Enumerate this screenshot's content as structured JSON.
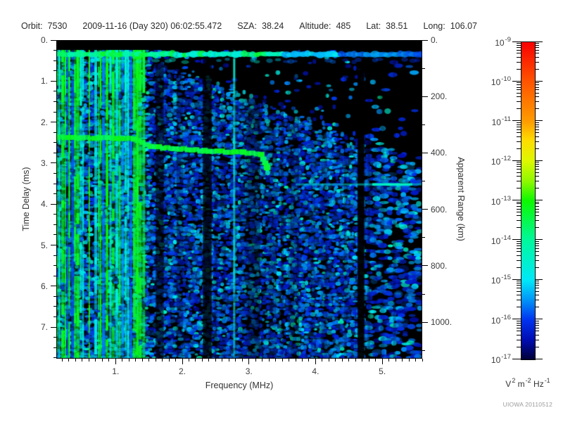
{
  "header": {
    "items": [
      {
        "label": "Orbit:",
        "value": "7530"
      },
      {
        "label": "",
        "value": "2009-11-16 (Day 320) 06:02:55.472"
      },
      {
        "label": "SZA:",
        "value": "38.24"
      },
      {
        "label": "Altitude:",
        "value": "485"
      },
      {
        "label": "Lat:",
        "value": "38.51"
      },
      {
        "label": "Long:",
        "value": "106.07"
      }
    ]
  },
  "chart_data": {
    "type": "heatmap",
    "xlabel": "Frequency (MHz)",
    "ylabel_left": "Time Delay (ms)",
    "ylabel_right": "Apparent Range (km)",
    "x_range_mhz": [
      0.11,
      5.6
    ],
    "x_major_ticks": [
      {
        "v": 1,
        "label": "1."
      },
      {
        "v": 2,
        "label": "2."
      },
      {
        "v": 3,
        "label": "3."
      },
      {
        "v": 4,
        "label": "4."
      },
      {
        "v": 5,
        "label": "5."
      }
    ],
    "x_minor_step_mhz": 0.1,
    "y_range_ms": [
      0,
      7.77
    ],
    "y_major_ticks": [
      {
        "v": 0,
        "label": "0."
      },
      {
        "v": 1,
        "label": "1."
      },
      {
        "v": 2,
        "label": "2."
      },
      {
        "v": 3,
        "label": "3."
      },
      {
        "v": 4,
        "label": "4."
      },
      {
        "v": 5,
        "label": "5."
      },
      {
        "v": 6,
        "label": "6."
      },
      {
        "v": 7,
        "label": "7."
      }
    ],
    "y_minor_step_ms": 0.25,
    "y2_range_km": [
      0,
      1129
    ],
    "y2_major_ticks": [
      {
        "v": 0,
        "label": "0."
      },
      {
        "v": 200,
        "label": "200."
      },
      {
        "v": 400,
        "label": "400."
      },
      {
        "v": 600,
        "label": "600."
      },
      {
        "v": 800,
        "label": "800."
      },
      {
        "v": 1000,
        "label": "1000."
      }
    ],
    "y2_minor_step_km": 100,
    "colorbar": {
      "scale": "log",
      "z_range": [
        "1e-17",
        "1e-9"
      ],
      "units": "V² m⁻² Hz⁻¹",
      "units_parts": [
        {
          "t": "V"
        },
        {
          "t": "2",
          "sup": true
        },
        {
          "t": " m"
        },
        {
          "t": "-2",
          "sup": true
        },
        {
          "t": " Hz"
        },
        {
          "t": "-1",
          "sup": true
        }
      ],
      "ticks": [
        {
          "exp": "-9",
          "label": "10⁻⁹"
        },
        {
          "exp": "-10",
          "label": "10⁻¹⁰"
        },
        {
          "exp": "-11",
          "label": "10⁻¹¹"
        },
        {
          "exp": "-12",
          "label": "10⁻¹²"
        },
        {
          "exp": "-13",
          "label": "10⁻¹³"
        },
        {
          "exp": "-14",
          "label": "10⁻¹⁴"
        },
        {
          "exp": "-15",
          "label": "10⁻¹⁵"
        },
        {
          "exp": "-16",
          "label": "10⁻¹⁶"
        },
        {
          "exp": "-17",
          "label": "10⁻¹⁷"
        }
      ],
      "gradient_stops": [
        {
          "pct": 0,
          "color": "#f80000"
        },
        {
          "pct": 12.5,
          "color": "#ff5400"
        },
        {
          "pct": 25,
          "color": "#ff9c00"
        },
        {
          "pct": 31,
          "color": "#ffdc00"
        },
        {
          "pct": 37.5,
          "color": "#dcf800"
        },
        {
          "pct": 44,
          "color": "#8cf800"
        },
        {
          "pct": 50,
          "color": "#0cf800"
        },
        {
          "pct": 62.5,
          "color": "#00f89c"
        },
        {
          "pct": 75,
          "color": "#00e8f8"
        },
        {
          "pct": 81,
          "color": "#0098f8"
        },
        {
          "pct": 87.5,
          "color": "#0034f0"
        },
        {
          "pct": 94,
          "color": "#000cb0"
        },
        {
          "pct": 100,
          "color": "#000038"
        }
      ]
    },
    "features": {
      "noise_seed": 42,
      "receiver_on_delay_ms": 0.24,
      "surface_echo_band": {
        "delay_ms": 0.33,
        "f_start": 0.11,
        "f_end": 5.6
      },
      "plasma_stripes": {
        "f_start": 0.11,
        "f_end": 1.85,
        "dense_until": 1.35
      },
      "extra_stripes": [
        {
          "f": 1.33,
          "color": "green"
        },
        {
          "f": 2.78,
          "color": "cyan"
        }
      ],
      "ionosphere_trace": {
        "points_mhz_ms": [
          [
            0.11,
            2.37
          ],
          [
            1.27,
            2.4
          ],
          [
            1.52,
            2.6
          ],
          [
            2.33,
            2.7
          ],
          [
            2.91,
            2.74
          ],
          [
            3.18,
            2.79
          ],
          [
            3.27,
            3.1
          ]
        ],
        "cutoff_mhz": 3.27
      },
      "horizontal_streak": {
        "delay_ms": 3.52,
        "f_start": 3.7,
        "f_end": 5.6
      },
      "dark_bands_mhz": [
        [
          1.6,
          1.72,
          0.6
        ],
        [
          2.31,
          2.44,
          0.78
        ],
        [
          2.99,
          3.17,
          0.4
        ],
        [
          4.63,
          4.73,
          0.92
        ]
      ],
      "sparse_right_from_mhz": 4.73,
      "echo_cutoff_boundary": {
        "f0": 1.85,
        "d0": 0.5,
        "slope_ms_per_mhz": 0.62
      }
    },
    "stamp": "UIOWA 20110512"
  }
}
